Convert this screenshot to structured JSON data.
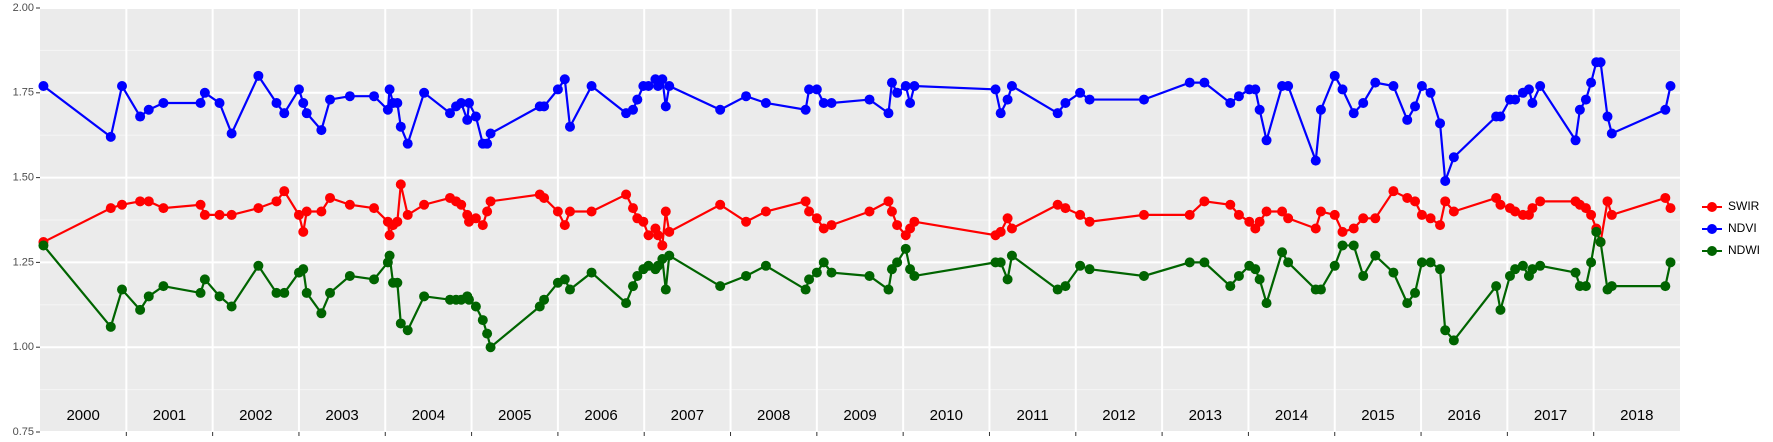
{
  "chart_data": {
    "type": "line",
    "x": [
      2000.04,
      2000.82,
      2000.95,
      2001.16,
      2001.26,
      2001.43,
      2001.86,
      2001.91,
      2002.08,
      2002.22,
      2002.53,
      2002.74,
      2002.83,
      2003.0,
      2003.05,
      2003.09,
      2003.26,
      2003.36,
      2003.59,
      2003.87,
      2004.03,
      2004.05,
      2004.09,
      2004.14,
      2004.18,
      2004.26,
      2004.45,
      2004.75,
      2004.82,
      2004.88,
      2004.95,
      2004.97,
      2005.05,
      2005.13,
      2005.18,
      2005.22,
      2005.79,
      2005.84,
      2006.0,
      2006.08,
      2006.14,
      2006.39,
      2006.79,
      2006.87,
      2006.92,
      2006.99,
      2007.05,
      2007.13,
      2007.16,
      2007.21,
      2007.25,
      2007.29,
      2007.88,
      2008.18,
      2008.41,
      2008.87,
      2008.91,
      2009.0,
      2009.08,
      2009.17,
      2009.61,
      2009.83,
      2009.87,
      2009.93,
      2010.03,
      2010.08,
      2010.13,
      2011.07,
      2011.13,
      2011.21,
      2011.26,
      2011.79,
      2011.88,
      2012.05,
      2012.16,
      2012.79,
      2013.32,
      2013.49,
      2013.79,
      2013.89,
      2014.01,
      2014.08,
      2014.13,
      2014.21,
      2014.39,
      2014.46,
      2014.78,
      2014.84,
      2015.0,
      2015.09,
      2015.22,
      2015.33,
      2015.47,
      2015.68,
      2015.84,
      2015.93,
      2016.01,
      2016.11,
      2016.22,
      2016.28,
      2016.38,
      2016.87,
      2016.92,
      2017.03,
      2017.09,
      2017.18,
      2017.25,
      2017.29,
      2017.38,
      2017.79,
      2017.84,
      2017.91,
      2017.97,
      2018.03,
      2018.08,
      2018.16,
      2018.21,
      2018.83,
      2018.89
    ],
    "series": [
      {
        "name": "SWIR",
        "color": "#ff0000",
        "values": [
          1.31,
          1.41,
          1.42,
          1.43,
          1.43,
          1.41,
          1.42,
          1.39,
          1.39,
          1.39,
          1.41,
          1.43,
          1.46,
          1.39,
          1.34,
          1.4,
          1.4,
          1.44,
          1.42,
          1.41,
          1.37,
          1.33,
          1.36,
          1.37,
          1.48,
          1.39,
          1.42,
          1.44,
          1.43,
          1.42,
          1.39,
          1.37,
          1.38,
          1.36,
          1.4,
          1.43,
          1.45,
          1.44,
          1.4,
          1.36,
          1.4,
          1.4,
          1.45,
          1.41,
          1.38,
          1.37,
          1.33,
          1.35,
          1.33,
          1.3,
          1.4,
          1.34,
          1.42,
          1.37,
          1.4,
          1.43,
          1.4,
          1.38,
          1.35,
          1.36,
          1.4,
          1.43,
          1.4,
          1.36,
          1.33,
          1.35,
          1.37,
          1.33,
          1.34,
          1.38,
          1.35,
          1.42,
          1.41,
          1.39,
          1.37,
          1.39,
          1.39,
          1.43,
          1.42,
          1.39,
          1.37,
          1.35,
          1.37,
          1.4,
          1.4,
          1.38,
          1.35,
          1.4,
          1.39,
          1.34,
          1.35,
          1.38,
          1.38,
          1.46,
          1.44,
          1.43,
          1.39,
          1.38,
          1.36,
          1.43,
          1.4,
          1.44,
          1.42,
          1.41,
          1.4,
          1.39,
          1.39,
          1.41,
          1.43,
          1.43,
          1.42,
          1.41,
          1.39,
          1.35,
          1.31,
          1.43,
          1.39,
          1.44,
          1.41
        ]
      },
      {
        "name": "NDVI",
        "color": "#0000ff",
        "values": [
          1.77,
          1.62,
          1.77,
          1.68,
          1.7,
          1.72,
          1.72,
          1.75,
          1.72,
          1.63,
          1.8,
          1.72,
          1.69,
          1.76,
          1.72,
          1.69,
          1.64,
          1.73,
          1.74,
          1.74,
          1.7,
          1.76,
          1.72,
          1.72,
          1.65,
          1.6,
          1.75,
          1.69,
          1.71,
          1.72,
          1.67,
          1.72,
          1.68,
          1.6,
          1.6,
          1.63,
          1.71,
          1.71,
          1.76,
          1.79,
          1.65,
          1.77,
          1.69,
          1.7,
          1.73,
          1.77,
          1.77,
          1.79,
          1.77,
          1.79,
          1.71,
          1.77,
          1.7,
          1.74,
          1.72,
          1.7,
          1.76,
          1.76,
          1.72,
          1.72,
          1.73,
          1.69,
          1.78,
          1.75,
          1.77,
          1.72,
          1.77,
          1.76,
          1.69,
          1.73,
          1.77,
          1.69,
          1.72,
          1.75,
          1.73,
          1.73,
          1.78,
          1.78,
          1.72,
          1.74,
          1.76,
          1.76,
          1.7,
          1.61,
          1.77,
          1.77,
          1.55,
          1.7,
          1.8,
          1.76,
          1.69,
          1.72,
          1.78,
          1.77,
          1.67,
          1.71,
          1.77,
          1.75,
          1.66,
          1.49,
          1.56,
          1.68,
          1.68,
          1.73,
          1.73,
          1.75,
          1.76,
          1.72,
          1.77,
          1.61,
          1.7,
          1.73,
          1.78,
          1.84,
          1.84,
          1.68,
          1.63,
          1.7,
          1.77
        ]
      },
      {
        "name": "NDWI",
        "color": "#006400",
        "values": [
          1.3,
          1.06,
          1.17,
          1.11,
          1.15,
          1.18,
          1.16,
          1.2,
          1.15,
          1.12,
          1.24,
          1.16,
          1.16,
          1.22,
          1.23,
          1.16,
          1.1,
          1.16,
          1.21,
          1.2,
          1.25,
          1.27,
          1.19,
          1.19,
          1.07,
          1.05,
          1.15,
          1.14,
          1.14,
          1.14,
          1.15,
          1.14,
          1.12,
          1.08,
          1.04,
          1.0,
          1.12,
          1.14,
          1.19,
          1.2,
          1.17,
          1.22,
          1.13,
          1.18,
          1.21,
          1.23,
          1.24,
          1.23,
          1.24,
          1.26,
          1.17,
          1.27,
          1.18,
          1.21,
          1.24,
          1.17,
          1.2,
          1.22,
          1.25,
          1.22,
          1.21,
          1.17,
          1.23,
          1.25,
          1.29,
          1.23,
          1.21,
          1.25,
          1.25,
          1.2,
          1.27,
          1.17,
          1.18,
          1.24,
          1.23,
          1.21,
          1.25,
          1.25,
          1.18,
          1.21,
          1.24,
          1.23,
          1.2,
          1.13,
          1.28,
          1.25,
          1.17,
          1.17,
          1.24,
          1.3,
          1.3,
          1.21,
          1.27,
          1.22,
          1.13,
          1.16,
          1.25,
          1.25,
          1.23,
          1.05,
          1.02,
          1.18,
          1.11,
          1.21,
          1.23,
          1.24,
          1.21,
          1.23,
          1.24,
          1.22,
          1.18,
          1.18,
          1.25,
          1.34,
          1.31,
          1.17,
          1.18,
          1.18,
          1.25
        ]
      }
    ],
    "year_labels": [
      "2000",
      "2001",
      "2002",
      "2003",
      "2004",
      "2005",
      "2006",
      "2007",
      "2008",
      "2009",
      "2010",
      "2011",
      "2012",
      "2013",
      "2014",
      "2015",
      "2016",
      "2017",
      "2018"
    ],
    "xlim": [
      2000,
      2019
    ],
    "xticks": [
      2001,
      2002,
      2003,
      2004,
      2005,
      2006,
      2007,
      2008,
      2009,
      2010,
      2011,
      2012,
      2013,
      2014,
      2015,
      2016,
      2017,
      2018
    ],
    "ylim": [
      0.75,
      2.0
    ],
    "yticks": [
      {
        "value": 0.75,
        "label": "0.75"
      },
      {
        "value": 1.0,
        "label": "1.00"
      },
      {
        "value": 1.25,
        "label": "1.25"
      },
      {
        "value": 1.5,
        "label": "1.50"
      },
      {
        "value": 1.75,
        "label": "1.75"
      },
      {
        "value": 2.0,
        "label": "2.00"
      }
    ],
    "grid": true,
    "legend": "right"
  }
}
